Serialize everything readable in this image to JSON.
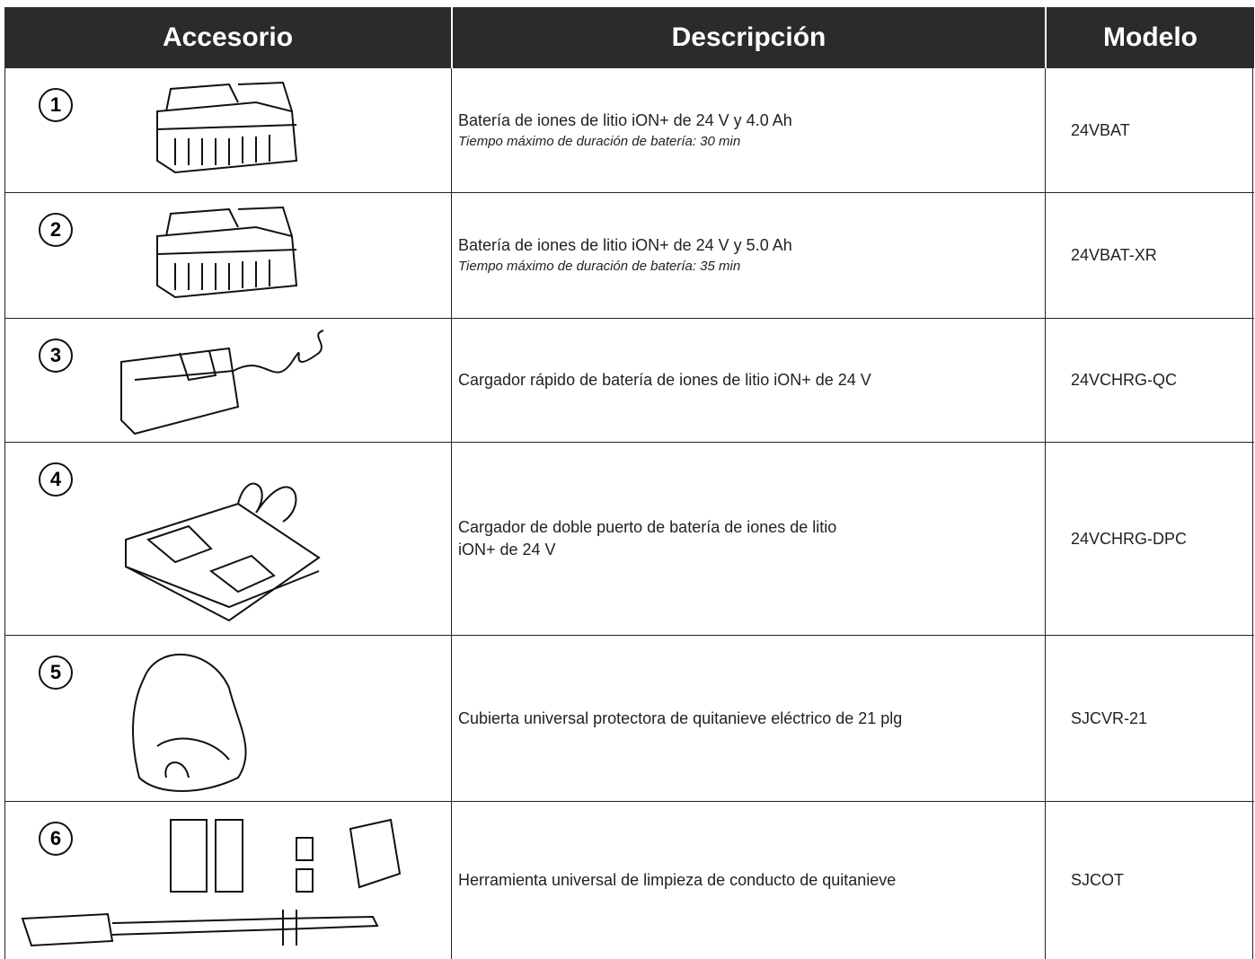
{
  "header": {
    "columns": [
      "Accesorio",
      "Descripción",
      "Modelo"
    ]
  },
  "rows": [
    {
      "number": "1",
      "description": "Batería de iones de litio iON+ de 24 V y 4.0 Ah",
      "note": "Tiempo máximo de duración de batería: 30 min",
      "model": "24VBAT"
    },
    {
      "number": "2",
      "description": "Batería de iones de litio iON+ de 24 V y 5.0 Ah",
      "note": "Tiempo máximo de duración de batería: 35 min",
      "model": "24VBAT-XR"
    },
    {
      "number": "3",
      "description": "Cargador rápido de batería de iones de litio iON+ de 24 V",
      "model": "24VCHRG-QC"
    },
    {
      "number": "4",
      "description": "Cargador de doble puerto de batería de iones de litio\niON+ de 24 V",
      "model": "24VCHRG-DPC"
    },
    {
      "number": "5",
      "description": "Cubierta universal protectora de quitanieve eléctrico de 21 plg",
      "model": "SJCVR-21"
    },
    {
      "number": "6",
      "description": "Herramienta universal de limpieza de conducto de quitanieve",
      "model": "SJCOT"
    }
  ]
}
